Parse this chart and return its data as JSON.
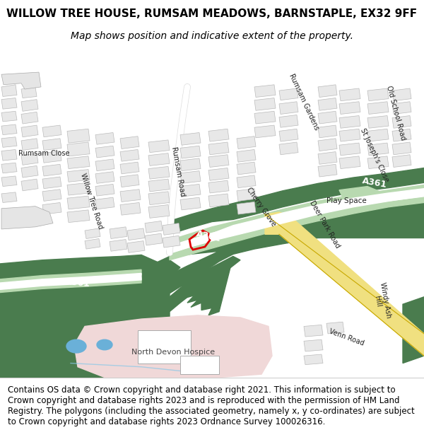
{
  "title": "WILLOW TREE HOUSE, RUMSAM MEADOWS, BARNSTAPLE, EX32 9FF",
  "subtitle": "Map shows position and indicative extent of the property.",
  "footer": "Contains OS data © Crown copyright and database right 2021. This information is subject to Crown copyright and database rights 2023 and is reproduced with the permission of HM Land Registry. The polygons (including the associated geometry, namely x, y co-ordinates) are subject to Crown copyright and database rights 2023 Ordnance Survey 100026316.",
  "title_fontsize": 11,
  "subtitle_fontsize": 10,
  "footer_fontsize": 8.5,
  "bg_color": "#ffffff",
  "map_bg": "#f0f0f0",
  "road_light_green": "#b8d9b0",
  "road_dark_green": "#4a7c4e",
  "road_yellow": "#f0e080",
  "road_white": "#ffffff",
  "building_color": "#e2e2e2",
  "building_edge": "#bbbbbb",
  "green_space_light": "#c8e0b8",
  "hospice_color": "#f0d8d8",
  "water_color": "#6ab0d8",
  "plot_color": "#dd0000",
  "label_color": "#333333",
  "a361_label_color": "#ffffff"
}
